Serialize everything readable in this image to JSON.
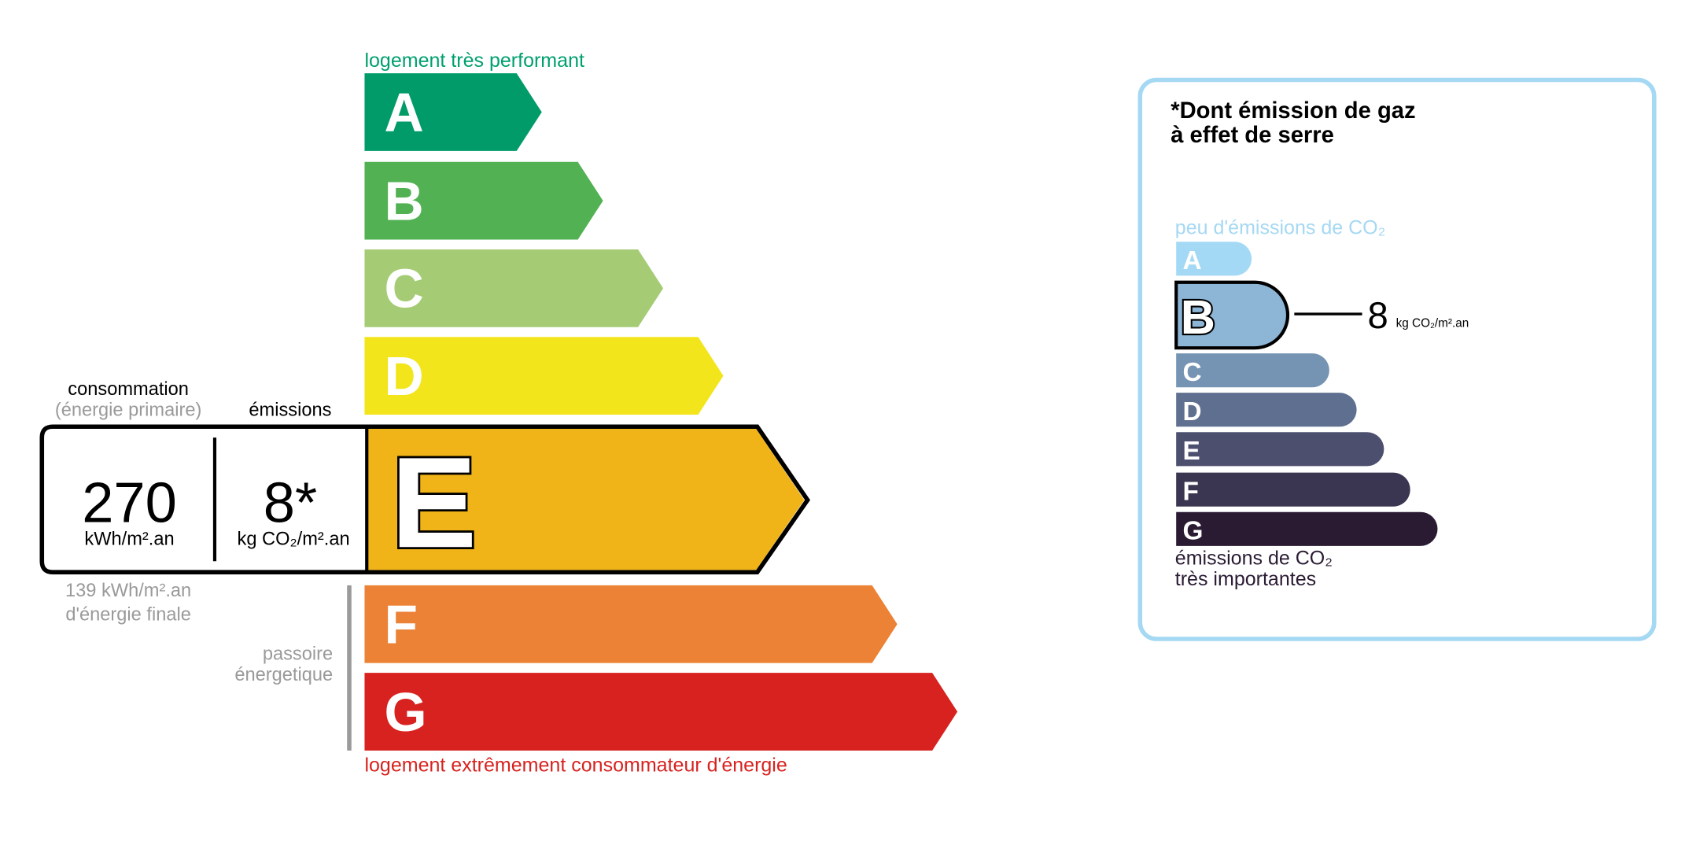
{
  "energy": {
    "top_label": "logement très performant",
    "bottom_label": "logement extrêmement consommateur d'énergie",
    "top_color": "#00a06d",
    "bottom_color": "#d7221f",
    "classes": [
      {
        "letter": "A",
        "color": "#019b69"
      },
      {
        "letter": "B",
        "color": "#52b153"
      },
      {
        "letter": "C",
        "color": "#a5cc74"
      },
      {
        "letter": "D",
        "color": "#f2e51c"
      },
      {
        "letter": "E",
        "color": "#f0b418"
      },
      {
        "letter": "F",
        "color": "#eb8235"
      },
      {
        "letter": "G",
        "color": "#d7221f"
      }
    ],
    "current_class": "E",
    "consumption_label": "consommation",
    "consumption_sublabel": "(énergie primaire)",
    "emissions_label": "émissions",
    "consumption_value": "270",
    "consumption_unit": "kWh/m².an",
    "emissions_value": "8*",
    "emissions_unit": "kg CO₂/m².an",
    "final_energy_line1": "139 kWh/m².an",
    "final_energy_line2": "d'énergie finale",
    "passoire_line1": "passoire",
    "passoire_line2": "énergetique"
  },
  "ghg": {
    "title_line1": "*Dont émission de gaz",
    "title_line2": "à effet de serre",
    "top_label": "peu d'émissions de CO₂",
    "bottom_line1": "émissions de CO₂",
    "bottom_line2": "très importantes",
    "border_color": "#a5d8f3",
    "classes": [
      {
        "letter": "A",
        "color": "#a4d9f5"
      },
      {
        "letter": "B",
        "color": "#8db5d5"
      },
      {
        "letter": "C",
        "color": "#7593b3"
      },
      {
        "letter": "D",
        "color": "#5f6f8f"
      },
      {
        "letter": "E",
        "color": "#4d4f6f"
      },
      {
        "letter": "F",
        "color": "#3a3551"
      },
      {
        "letter": "G",
        "color": "#2a1b33"
      }
    ],
    "current_class": "B",
    "value": "8",
    "unit": "kg CO₂/m².an"
  }
}
